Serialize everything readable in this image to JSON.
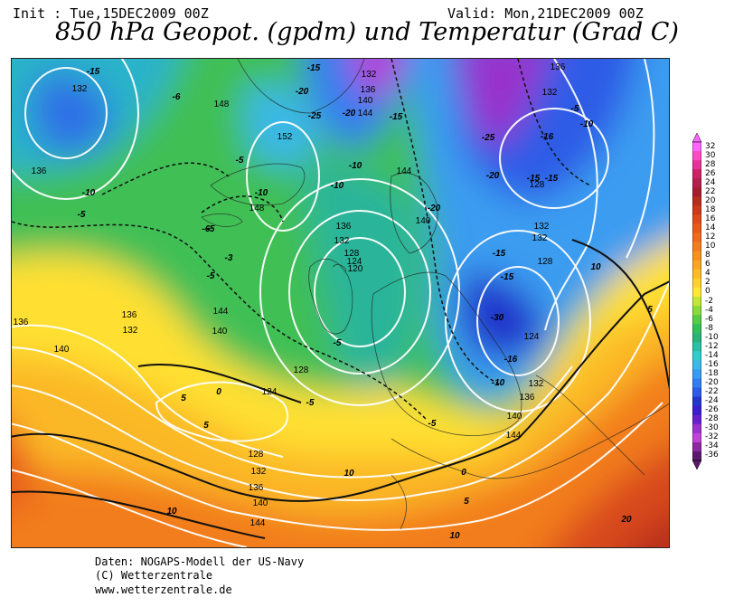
{
  "header": {
    "init": "Init : Tue,15DEC2009 00Z",
    "valid": "Valid: Mon,21DEC2009 00Z",
    "title": "850 hPa Geopot. (gpdm) und Temperatur (Grad C)"
  },
  "credits": {
    "line1": "Daten: NOGAPS-Modell der US-Navy",
    "line2": "(C) Wetterzentrale",
    "line3": "www.wetterzentrale.de"
  },
  "colorbar": {
    "labels": [
      "32",
      "30",
      "28",
      "26",
      "24",
      "22",
      "20",
      "18",
      "16",
      "14",
      "12",
      "10",
      "8",
      "6",
      "4",
      "2",
      "0",
      "-2",
      "-4",
      "-6",
      "-8",
      "-10",
      "-12",
      "-14",
      "-16",
      "-18",
      "-20",
      "-22",
      "-24",
      "-26",
      "-28",
      "-30",
      "-32",
      "-34",
      "-36"
    ],
    "colors": [
      "#ff66ff",
      "#ff4cc4",
      "#e63399",
      "#cc2266",
      "#b3204d",
      "#a61e2e",
      "#b82e1e",
      "#cc3a1c",
      "#dd4a1c",
      "#e85a1c",
      "#ef6a1e",
      "#f27d1e",
      "#f5921e",
      "#f8a623",
      "#fcbc28",
      "#ffd22e",
      "#ffe733",
      "#c2e636",
      "#8cd93c",
      "#57cc46",
      "#33bf5a",
      "#2ab37a",
      "#29c0a6",
      "#33cccc",
      "#3bb8e6",
      "#3a9cf0",
      "#347df0",
      "#2d5ce6",
      "#2436cc",
      "#3a1fcc",
      "#6621cc",
      "#9933cc",
      "#c144d9",
      "#8a2a9e",
      "#5c1a6e"
    ]
  },
  "map_labels": {
    "geopotential": [
      "136",
      "132",
      "148",
      "152",
      "148",
      "136",
      "132",
      "128",
      "124",
      "120",
      "132",
      "136",
      "140",
      "144",
      "128",
      "124",
      "128",
      "132",
      "136",
      "140",
      "144",
      "136",
      "132",
      "136",
      "140",
      "144",
      "132",
      "128",
      "132",
      "128",
      "132",
      "124",
      "132",
      "136",
      "140",
      "144",
      "140",
      "144"
    ],
    "temperature": [
      "-15",
      "-6",
      "-10",
      "-5",
      "-15",
      "-20",
      "-25",
      "-20",
      "-15",
      "-5",
      "-10",
      "-6",
      "-3",
      "-5",
      "-10",
      "-10",
      "-20",
      "-15",
      "-25",
      "-20",
      "-15",
      "-10",
      "-5",
      "-16",
      "-15",
      "-10",
      "-5",
      "-15",
      "-30",
      "-16",
      "-10",
      "-5",
      "-5",
      "-5",
      "0",
      "5",
      "10",
      "10",
      "5",
      "0",
      "5",
      "10",
      "-5",
      "20",
      "5",
      "10",
      "-15"
    ]
  }
}
